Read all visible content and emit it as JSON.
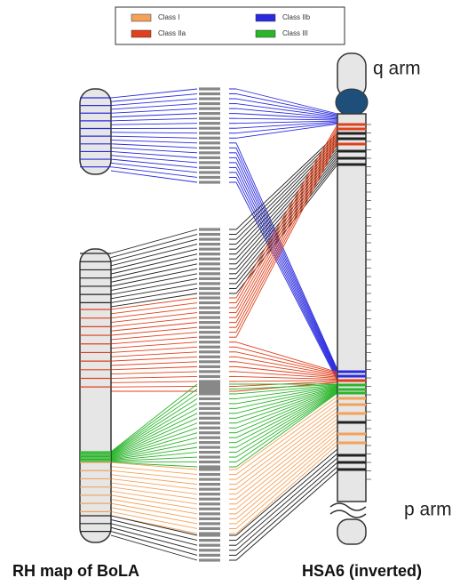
{
  "legend": [
    {
      "label": "Class I",
      "color": "#f4a25a"
    },
    {
      "label": "Class IIb",
      "color": "#2a2ae0"
    },
    {
      "label": "Class IIa",
      "color": "#e0401a"
    },
    {
      "label": "Class III",
      "color": "#2bb52b"
    }
  ],
  "labels": {
    "q_arm": "q arm",
    "p_arm": "p arm",
    "left_title": "RH map of BoLA",
    "right_title": "HSA6 (inverted)"
  }
}
